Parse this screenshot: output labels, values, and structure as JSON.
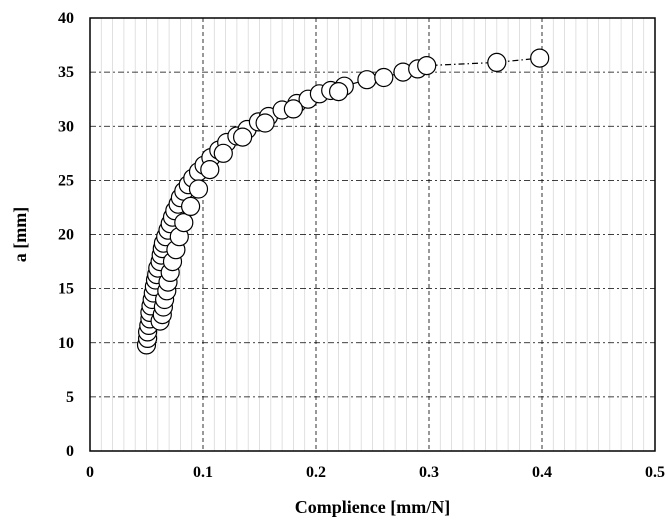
{
  "chart_data": {
    "type": "scatter",
    "title": "",
    "xlabel": "Complience [mm/N]",
    "ylabel": "a [mm]",
    "xlim": [
      0,
      0.5
    ],
    "ylim": [
      0,
      40
    ],
    "x_ticks": [
      "0",
      "0.1",
      "0.2",
      "0.3",
      "0.4",
      "0.5"
    ],
    "y_ticks": [
      "0",
      "5",
      "10",
      "15",
      "20",
      "25",
      "30",
      "35",
      "40"
    ],
    "grid": true,
    "legend": "none",
    "marker": "open-circle",
    "series": [
      {
        "line_style": "dash-dot",
        "points": [
          [
            0.05,
            9.8
          ],
          [
            0.051,
            10.4
          ],
          [
            0.051,
            11.0
          ],
          [
            0.052,
            11.6
          ],
          [
            0.053,
            12.2
          ],
          [
            0.053,
            12.8
          ],
          [
            0.054,
            13.4
          ],
          [
            0.055,
            14.0
          ],
          [
            0.056,
            14.6
          ],
          [
            0.057,
            15.2
          ],
          [
            0.058,
            15.8
          ],
          [
            0.059,
            16.3
          ],
          [
            0.06,
            16.9
          ],
          [
            0.062,
            17.5
          ],
          [
            0.063,
            18.1
          ],
          [
            0.064,
            18.7
          ],
          [
            0.065,
            19.2
          ],
          [
            0.067,
            19.8
          ],
          [
            0.069,
            20.4
          ],
          [
            0.071,
            21.0
          ],
          [
            0.073,
            21.6
          ],
          [
            0.075,
            22.2
          ],
          [
            0.078,
            22.8
          ],
          [
            0.08,
            23.4
          ],
          [
            0.083,
            24.0
          ],
          [
            0.087,
            24.6
          ],
          [
            0.091,
            25.2
          ],
          [
            0.096,
            25.8
          ],
          [
            0.101,
            26.4
          ],
          [
            0.107,
            27.1
          ],
          [
            0.114,
            27.8
          ],
          [
            0.121,
            28.5
          ],
          [
            0.13,
            29.1
          ],
          [
            0.139,
            29.7
          ],
          [
            0.149,
            30.4
          ],
          [
            0.158,
            30.9
          ],
          [
            0.17,
            31.5
          ],
          [
            0.183,
            32.1
          ],
          [
            0.193,
            32.5
          ],
          [
            0.203,
            33.0
          ],
          [
            0.213,
            33.3
          ],
          [
            0.225,
            33.7
          ],
          [
            0.245,
            34.3
          ],
          [
            0.26,
            34.5
          ],
          [
            0.277,
            35.0
          ],
          [
            0.29,
            35.3
          ],
          [
            0.298,
            35.6
          ],
          [
            0.36,
            35.9
          ],
          [
            0.398,
            36.3
          ],
          [
            0.062,
            12.0
          ],
          [
            0.064,
            12.6
          ],
          [
            0.065,
            13.3
          ],
          [
            0.066,
            14.0
          ],
          [
            0.068,
            14.8
          ],
          [
            0.069,
            15.6
          ],
          [
            0.071,
            16.5
          ],
          [
            0.073,
            17.5
          ],
          [
            0.076,
            18.6
          ],
          [
            0.079,
            19.8
          ],
          [
            0.083,
            21.1
          ],
          [
            0.089,
            22.6
          ],
          [
            0.096,
            24.2
          ],
          [
            0.106,
            26.0
          ],
          [
            0.118,
            27.5
          ],
          [
            0.135,
            29.0
          ],
          [
            0.155,
            30.3
          ],
          [
            0.18,
            31.6
          ],
          [
            0.22,
            33.2
          ]
        ]
      }
    ]
  }
}
